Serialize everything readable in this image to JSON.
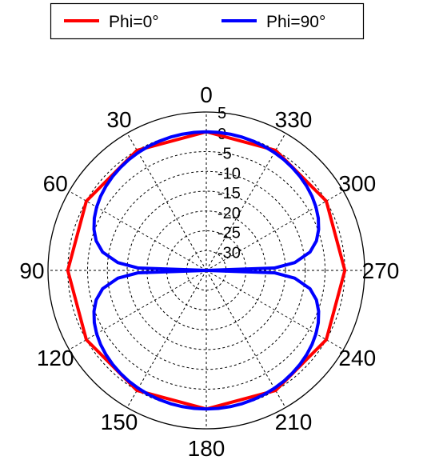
{
  "chart_data": {
    "type": "polar",
    "title": "",
    "angle_unit": "deg",
    "angle_direction": "counterclockwise",
    "zero_angle_position": "top",
    "angular_ticks": [
      "0",
      "30",
      "60",
      "90",
      "120",
      "150",
      "180",
      "210",
      "240",
      "270",
      "300",
      "330"
    ],
    "radial_ticks": [
      "5",
      "0",
      "-5",
      "-10",
      "-15",
      "-20",
      "-25",
      "-30"
    ],
    "rlim": [
      -35,
      5
    ],
    "grid": true,
    "legend": {
      "placement": "top"
    },
    "series": [
      {
        "name": "Phi=0°",
        "color": "#ff0000",
        "theta_deg": [
          0,
          30,
          60,
          90,
          120,
          150,
          180,
          210,
          240,
          270,
          300,
          330,
          360
        ],
        "r": [
          0,
          0,
          0,
          0,
          0,
          0,
          0,
          0,
          0,
          0,
          0,
          0,
          0
        ]
      },
      {
        "name": "Phi=90°",
        "color": "#0000ff",
        "theta_deg": [
          0,
          5,
          10,
          15,
          20,
          25,
          30,
          35,
          40,
          45,
          50,
          55,
          60,
          65,
          70,
          75,
          80,
          85,
          88,
          90,
          92,
          95,
          100,
          105,
          110,
          115,
          120,
          125,
          130,
          135,
          140,
          145,
          150,
          155,
          160,
          165,
          170,
          175,
          180,
          185,
          190,
          195,
          200,
          205,
          210,
          215,
          220,
          225,
          230,
          235,
          240,
          245,
          250,
          255,
          260,
          265,
          268,
          270,
          272,
          275,
          280,
          285,
          290,
          295,
          300,
          305,
          310,
          315,
          320,
          325,
          330,
          335,
          340,
          345,
          350,
          355,
          360
        ],
        "r": [
          0,
          -0.02,
          -0.07,
          -0.15,
          -0.27,
          -0.42,
          -0.62,
          -0.86,
          -1.16,
          -1.5,
          -1.9,
          -2.39,
          -3.01,
          -3.78,
          -4.8,
          -6.2,
          -8.4,
          -12.6,
          -17.8,
          -35,
          -17.8,
          -12.6,
          -8.4,
          -6.2,
          -4.8,
          -3.78,
          -3.01,
          -2.39,
          -1.9,
          -1.5,
          -1.16,
          -0.86,
          -0.62,
          -0.42,
          -0.27,
          -0.15,
          -0.07,
          -0.02,
          0,
          -0.02,
          -0.07,
          -0.15,
          -0.27,
          -0.42,
          -0.62,
          -0.86,
          -1.16,
          -1.5,
          -1.9,
          -2.39,
          -3.01,
          -3.78,
          -4.8,
          -6.2,
          -8.4,
          -12.6,
          -17.8,
          -35,
          -17.8,
          -12.6,
          -8.4,
          -6.2,
          -4.8,
          -3.78,
          -3.01,
          -2.39,
          -1.9,
          -1.5,
          -1.16,
          -0.86,
          -0.62,
          -0.42,
          -0.27,
          -0.15,
          -0.07,
          -0.02,
          0
        ]
      }
    ]
  }
}
